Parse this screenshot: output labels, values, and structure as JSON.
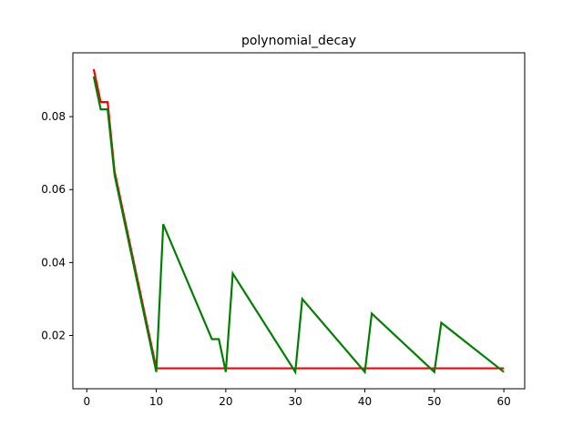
{
  "chart_data": {
    "type": "line",
    "title": "polynomial_decay",
    "xlabel": "",
    "ylabel": "",
    "xlim": [
      -2.0,
      63.0
    ],
    "ylim": [
      0.0054,
      0.0975
    ],
    "xticks": [
      0,
      10,
      20,
      30,
      40,
      50,
      60
    ],
    "xtick_labels": [
      "0",
      "10",
      "20",
      "30",
      "40",
      "50",
      "60"
    ],
    "yticks": [
      0.02,
      0.04,
      0.06,
      0.08
    ],
    "ytick_labels": [
      "0.02",
      "0.04",
      "0.06",
      "0.08"
    ],
    "grid": false,
    "legend": false,
    "series": [
      {
        "color": "#ff0000",
        "x": [
          1,
          2,
          3,
          4,
          10,
          11,
          20,
          30,
          40,
          50,
          60
        ],
        "y": [
          0.093,
          0.084,
          0.084,
          0.065,
          0.011,
          0.011,
          0.011,
          0.011,
          0.011,
          0.011,
          0.011
        ]
      },
      {
        "color": "#008000",
        "x": [
          1,
          2,
          3,
          4,
          10,
          11,
          18,
          19,
          20,
          21,
          30,
          31,
          40,
          41,
          50,
          51,
          60
        ],
        "y": [
          0.091,
          0.082,
          0.082,
          0.064,
          0.01,
          0.0505,
          0.019,
          0.019,
          0.01,
          0.037,
          0.01,
          0.03,
          0.01,
          0.026,
          0.01,
          0.0235,
          0.01
        ]
      }
    ]
  }
}
